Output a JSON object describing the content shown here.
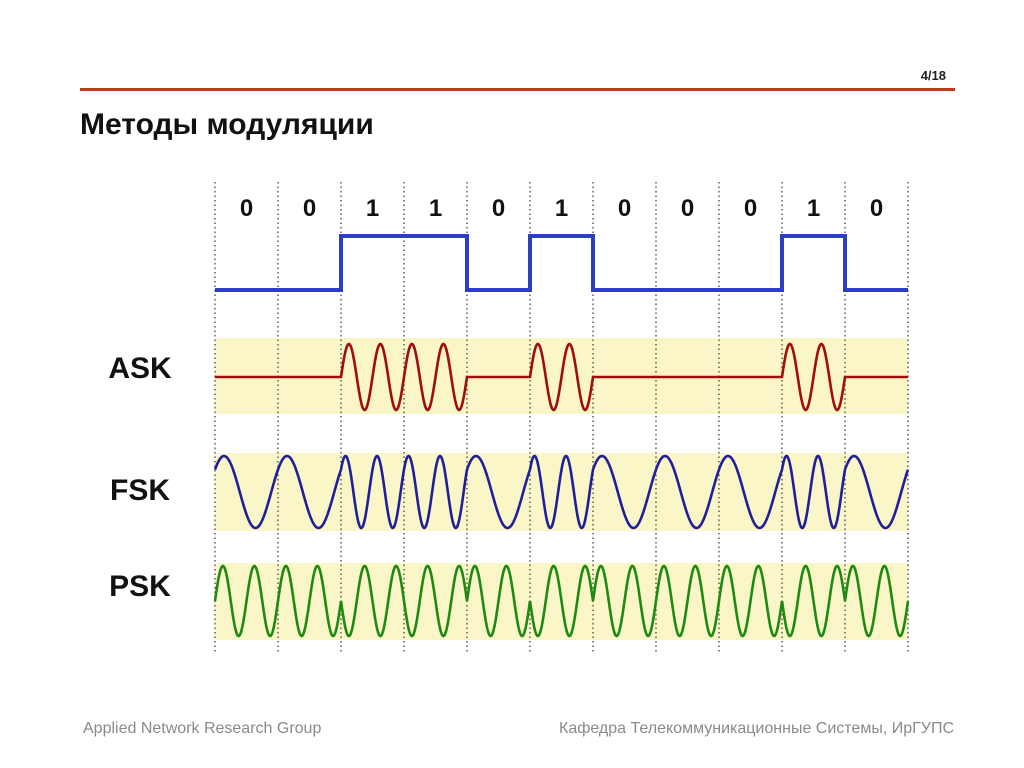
{
  "slide": {
    "page_number": "4/18",
    "title": "Методы модуляции"
  },
  "diagram": {
    "bits": [
      "0",
      "0",
      "1",
      "1",
      "0",
      "1",
      "0",
      "0",
      "0",
      "1",
      "0"
    ],
    "rows": [
      {
        "key": "ask",
        "label": "ASK"
      },
      {
        "key": "fsk",
        "label": "FSK"
      },
      {
        "key": "psk",
        "label": "PSK"
      }
    ],
    "colors": {
      "digital": "#2b3ec4",
      "ask": "#a00d0d",
      "fsk": "#1f1f9a",
      "psk": "#1f8a10",
      "band": "#fbf6c8",
      "rule": "#c0391b",
      "divider": "#444444"
    }
  },
  "footer": {
    "left": "Applied Network Research Group",
    "right": "Кафедра Телекоммуникационные Системы, ИрГУПС"
  }
}
